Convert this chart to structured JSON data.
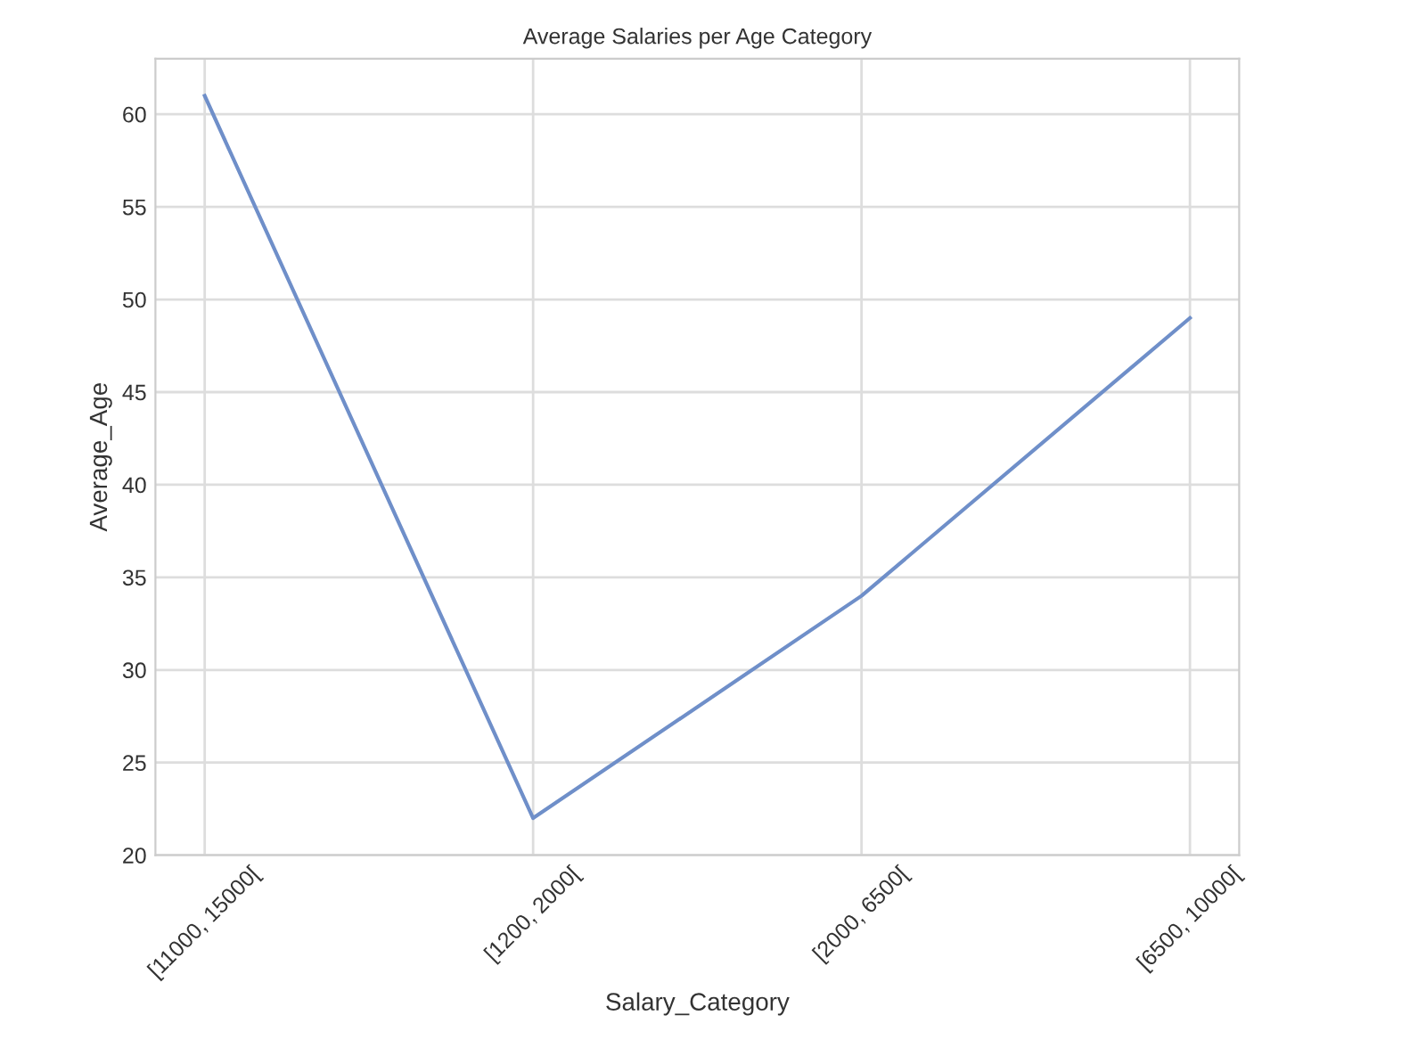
{
  "chart_data": {
    "type": "line",
    "title": "Average Salaries per Age Category",
    "xlabel": "Salary_Category",
    "ylabel": "Average_Age",
    "categories": [
      "[11000, 15000[",
      "[1200, 2000[",
      "[2000, 6500[",
      "[6500, 10000["
    ],
    "series": [
      {
        "color": "#6f8fc9",
        "values": [
          61,
          22,
          34,
          49
        ]
      }
    ],
    "ylim": [
      20,
      63
    ],
    "yticks": [
      20,
      25,
      30,
      35,
      40,
      45,
      50,
      55,
      60
    ],
    "grid": true,
    "marker": "none",
    "line_style": "solid"
  }
}
